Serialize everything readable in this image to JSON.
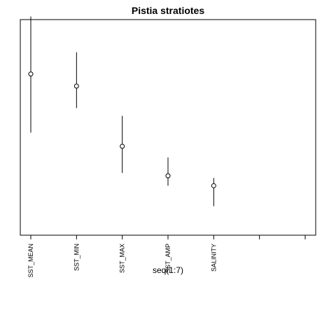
{
  "chart_data": {
    "type": "scatter",
    "title": "Pistia stratiotes",
    "xlabel": "seq(1:7)",
    "ylabel": "",
    "x": [
      1,
      2,
      3,
      4,
      5,
      6,
      7
    ],
    "tick_labels": [
      "SST_MEAN",
      "SST_MIN",
      "SST_MAX",
      "SST_AMP",
      "SALINITY",
      "",
      ""
    ],
    "xlim": [
      1,
      7
    ],
    "ylim": [
      0,
      100
    ],
    "series": [
      {
        "points": [
          {
            "x": 1,
            "y": 70.2,
            "low": 43,
            "high": 96.9
          },
          {
            "x": 2,
            "y": 64.6,
            "low": 54.4,
            "high": 80.3
          },
          {
            "x": 3,
            "y": 36.7,
            "low": 24.3,
            "high": 50.8
          },
          {
            "x": 4,
            "y": 23,
            "low": 18.4,
            "high": 31.5
          },
          {
            "x": 5,
            "y": 18.4,
            "low": 8.9,
            "high": 22
          }
        ]
      }
    ],
    "grid": false,
    "y_axis_shown": false
  }
}
